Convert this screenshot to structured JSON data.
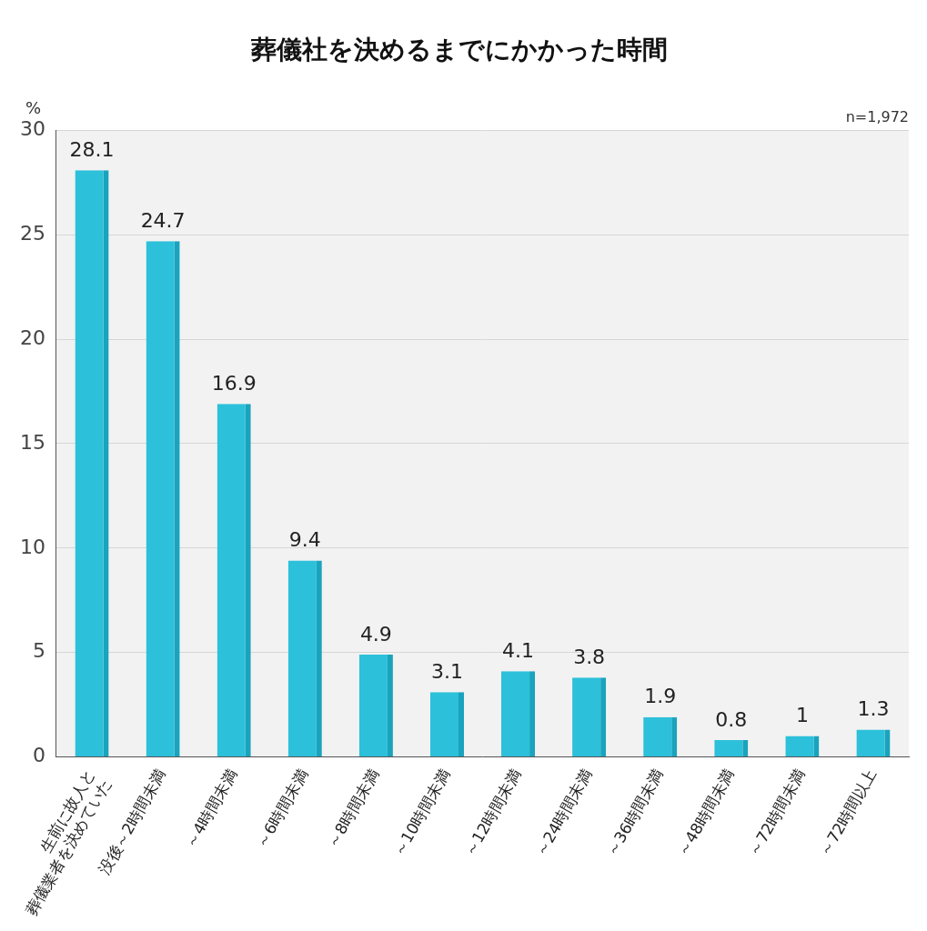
{
  "chart_data": {
    "type": "bar",
    "title": "葬儀社を決めるまでにかかった時間",
    "y_label": "%",
    "annotations": [
      "n=1,972"
    ],
    "categories": [
      [
        "生前に故人と",
        "葬儀業者を決めていた"
      ],
      "没後～2時間未満",
      "～4時間未満",
      "～6時間未満",
      "～8時間未満",
      "～10時間未満",
      "～12時間未満",
      "～24時間未満",
      "～36時間未満",
      "～48時間未満",
      "～72時間未満",
      "～72時間以上"
    ],
    "values": [
      28.1,
      24.7,
      16.9,
      9.4,
      4.9,
      3.1,
      4.1,
      3.8,
      1.9,
      0.8,
      1.0,
      1.3
    ],
    "color": "#2cc0da",
    "ylim": [
      0,
      30
    ],
    "yticks": [
      0,
      5,
      10,
      15,
      20,
      25,
      30
    ],
    "grid": true,
    "data_labels": true
  }
}
